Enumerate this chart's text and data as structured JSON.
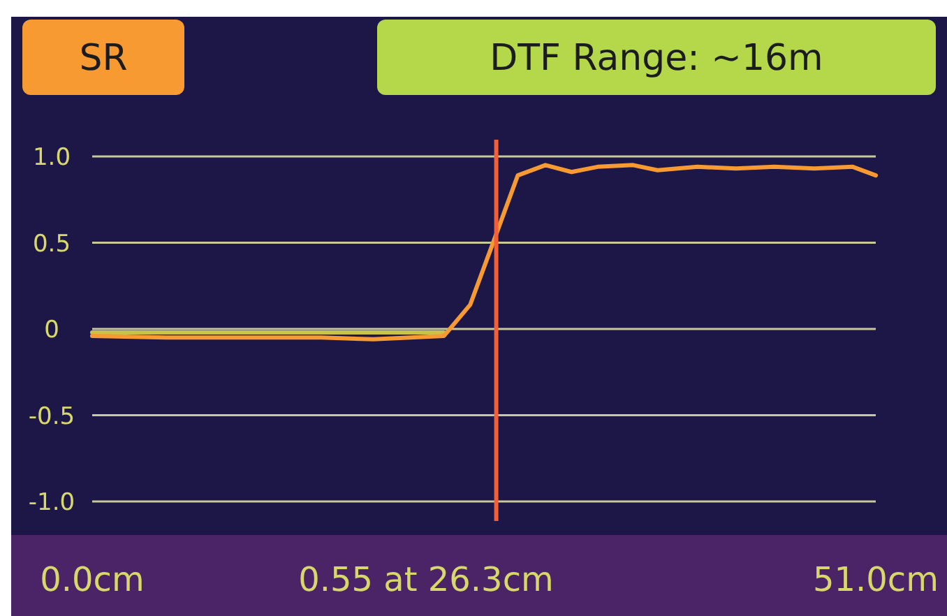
{
  "chart_data": {
    "type": "line",
    "title": "SR",
    "subtitle": "DTF Range: ~16m",
    "xlim": [
      0,
      51
    ],
    "xticks": [
      {
        "value": 0,
        "label": "0.0cm"
      },
      {
        "value": 51,
        "label": "51.0cm"
      }
    ],
    "ylim": [
      -1,
      1
    ],
    "yticks": [
      {
        "value": 1,
        "label": "1.0"
      },
      0.5,
      0,
      -0.5,
      {
        "value": -1,
        "label": "-1.0"
      }
    ],
    "grid": "y",
    "marker": "none",
    "line_style": "solid",
    "series": [
      {
        "color": "#c9c24a",
        "x": [
          0,
          22.9
        ],
        "values": [
          -0.02,
          -0.02
        ]
      },
      {
        "color": "#f79a32",
        "x": [
          0,
          4.8,
          9.9,
          14.9,
          18.3,
          22.9,
          24.6,
          26.3,
          27.7,
          29.5,
          31.2,
          32.9,
          35.2,
          36.8,
          39.4,
          41.9,
          44.4,
          47.0,
          49.5,
          51.0
        ],
        "values": [
          -0.04,
          -0.05,
          -0.05,
          -0.05,
          -0.06,
          -0.04,
          0.14,
          0.55,
          0.89,
          0.95,
          0.91,
          0.94,
          0.95,
          0.92,
          0.94,
          0.93,
          0.94,
          0.93,
          0.94,
          0.89
        ]
      }
    ],
    "ref_lines": [
      {
        "axis": "x",
        "value": 26.3,
        "label": null,
        "color": "#f2603a"
      }
    ],
    "annotations": [
      "0.55 at 26.3cm"
    ]
  }
}
